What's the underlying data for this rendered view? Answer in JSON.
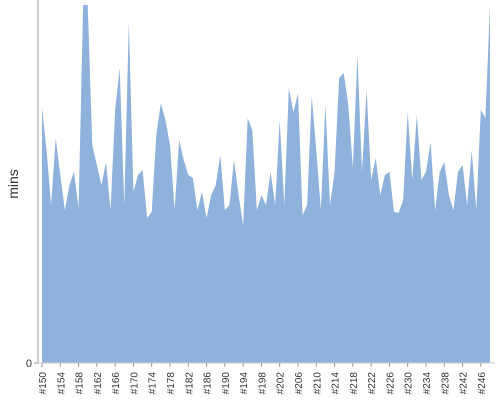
{
  "chart_data": {
    "type": "area",
    "y_label": "mins",
    "color": "#8eb2db",
    "categories": [
      "#150",
      null,
      null,
      null,
      "#154",
      null,
      null,
      null,
      "#158",
      null,
      null,
      null,
      "#162",
      null,
      null,
      null,
      "#166",
      null,
      null,
      null,
      "#170",
      null,
      null,
      null,
      "#174",
      null,
      null,
      null,
      "#178",
      null,
      null,
      null,
      "#182",
      null,
      null,
      null,
      "#186",
      null,
      null,
      null,
      "#190",
      null,
      null,
      null,
      "#194",
      null,
      null,
      null,
      "#198",
      null,
      null,
      null,
      "#202",
      null,
      null,
      null,
      "#206",
      null,
      null,
      null,
      "#210",
      null,
      null,
      null,
      "#214",
      null,
      null,
      null,
      "#218",
      null,
      null,
      null,
      "#222",
      null,
      null,
      null,
      "#226",
      null,
      null,
      null,
      "#230",
      null,
      null,
      null,
      "#234",
      null,
      null,
      null,
      "#238",
      null,
      null,
      null,
      "#242",
      null,
      null,
      null,
      "#246",
      null,
      null
    ],
    "values": [
      71.2,
      59.5,
      44.1,
      62.8,
      52.5,
      42.7,
      49.7,
      53.4,
      43.3,
      100,
      100,
      60.9,
      55.3,
      49.7,
      56.1,
      42.7,
      70.7,
      82.4,
      44.1,
      95.3,
      47.8,
      52.5,
      53.9,
      40.5,
      42.2,
      63.7,
      72.6,
      67.9,
      60.9,
      42.7,
      62.3,
      56.7,
      52.5,
      51.7,
      42.7,
      47.8,
      40.5,
      46.9,
      49.7,
      58.1,
      42.7,
      44.1,
      56.7,
      46.9,
      38.5,
      68.4,
      65.1,
      42.7,
      46.9,
      44.1,
      53.4,
      44.1,
      67.9,
      44.1,
      76.8,
      70.1,
      75.4,
      41.3,
      44.1,
      74.6,
      59.5,
      42.7,
      72.1,
      44.1,
      53.4,
      79.6,
      81.0,
      72.1,
      54.5,
      86.0,
      53.4,
      76.3,
      51.1,
      57.3,
      46.9,
      52.5,
      53.4,
      42.2,
      41.9,
      45.5,
      70.1,
      51.1,
      69.3,
      51.1,
      53.4,
      61.7,
      42.7,
      53.4,
      56.1,
      46.9,
      42.7,
      53.4,
      55.3,
      44.1,
      59.5,
      42.7,
      70.7,
      68.4,
      100
    ],
    "ylim": [
      0,
      100
    ],
    "yticks": [
      0
    ]
  }
}
